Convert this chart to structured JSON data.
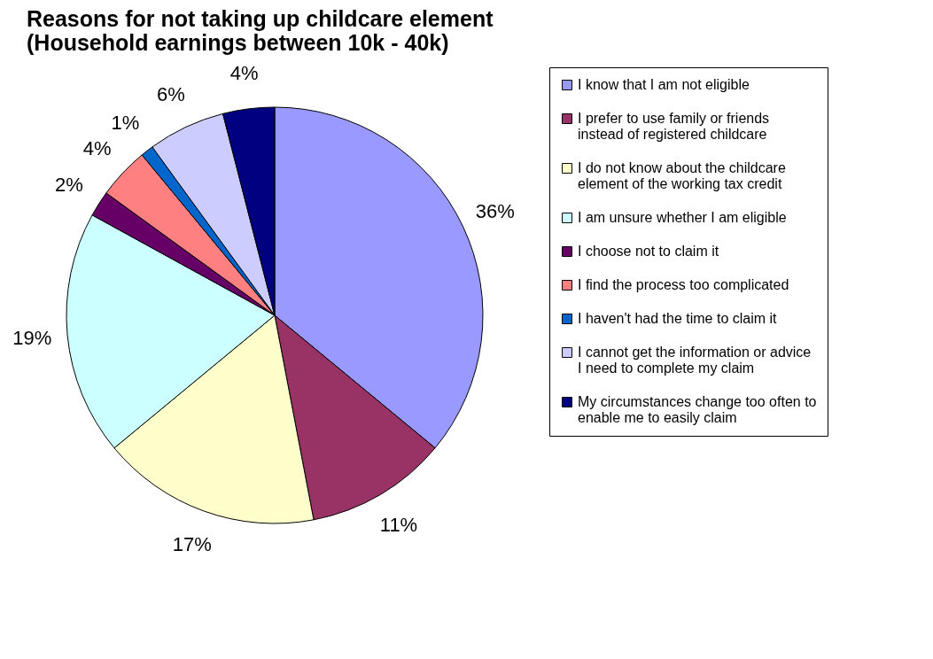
{
  "chart_data": {
    "type": "pie",
    "title": "Reasons for not taking up childcare element (Household earnings between 10k - 40k)",
    "categories": [
      "I know that I am not eligible",
      "I prefer to use family or friends instead of registered childcare",
      "I do not know about the childcare element of the working tax credit",
      "I am unsure whether I am eligible",
      "I choose not to claim it",
      "I find the process too complicated",
      "I haven't had the time to claim it",
      "I cannot get the information or advice I need to complete my claim",
      "My circumstances change too often to enable me to easily claim"
    ],
    "values": [
      36,
      11,
      17,
      19,
      2,
      4,
      1,
      6,
      4
    ],
    "value_labels": [
      "36%",
      "11%",
      "17%",
      "19%",
      "2%",
      "4%",
      "1%",
      "6%",
      "4%"
    ],
    "colors": [
      "#9999ff",
      "#993366",
      "#ffffcc",
      "#ccffff",
      "#660066",
      "#ff8080",
      "#0066cc",
      "#ccccff",
      "#000080"
    ],
    "legend": "right"
  }
}
